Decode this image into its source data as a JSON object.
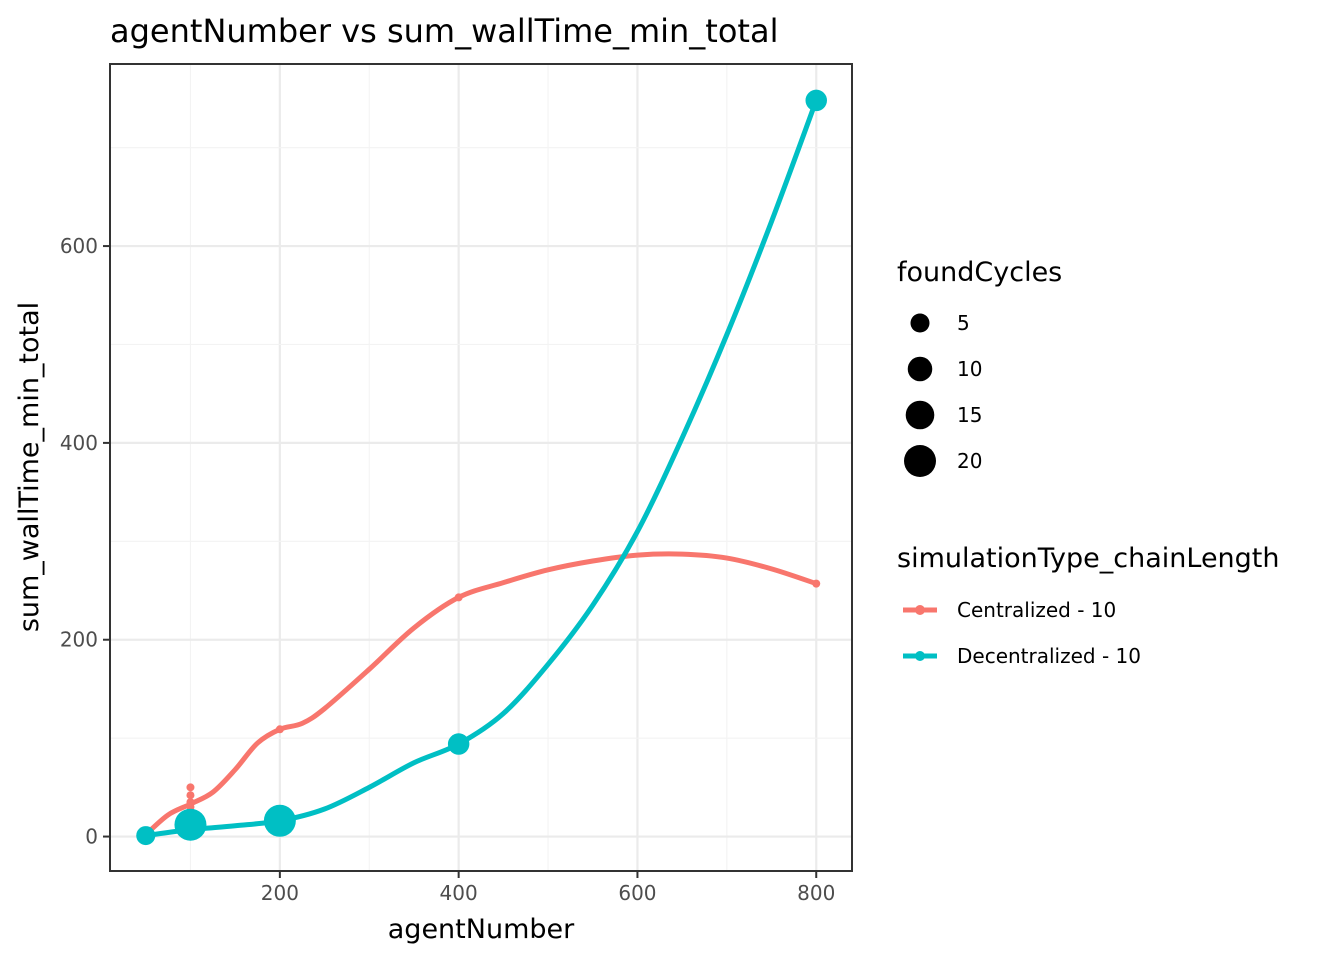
{
  "chart_data": {
    "type": "scatter",
    "title": "agentNumber  vs  sum_wallTime_min_total",
    "xlabel": "agentNumber",
    "ylabel": "sum_wallTime_min_total",
    "xlim": [
      10,
      840
    ],
    "ylim": [
      -35,
      785
    ],
    "x_ticks": [
      200,
      400,
      600,
      800
    ],
    "y_ticks": [
      0,
      200,
      400,
      600
    ],
    "x_tick_labels": [
      "200",
      "400",
      "600",
      "800"
    ],
    "y_tick_labels": [
      "0",
      "200",
      "400",
      "600"
    ],
    "grid": true,
    "legend_placement": "right",
    "size_legend": {
      "title": "foundCycles",
      "entries": [
        {
          "label": "5",
          "value": 5
        },
        {
          "label": "10",
          "value": 10
        },
        {
          "label": "15",
          "value": 15
        },
        {
          "label": "20",
          "value": 20
        }
      ]
    },
    "color_legend": {
      "title": "simulationType_chainLength"
    },
    "series": [
      {
        "name": "Centralized - 10",
        "color": "#F8766D",
        "points": [
          {
            "x": 50,
            "y": 2,
            "size": 1
          },
          {
            "x": 100,
            "y": 20,
            "size": 1
          },
          {
            "x": 100,
            "y": 25,
            "size": 1
          },
          {
            "x": 100,
            "y": 30,
            "size": 1
          },
          {
            "x": 100,
            "y": 35,
            "size": 1
          },
          {
            "x": 100,
            "y": 42,
            "size": 1
          },
          {
            "x": 100,
            "y": 50,
            "size": 1
          },
          {
            "x": 200,
            "y": 109,
            "size": 1
          },
          {
            "x": 400,
            "y": 243,
            "size": 1
          },
          {
            "x": 800,
            "y": 257,
            "size": 1
          }
        ],
        "smooth": [
          {
            "x": 50,
            "y": 2
          },
          {
            "x": 75,
            "y": 22
          },
          {
            "x": 100,
            "y": 33
          },
          {
            "x": 125,
            "y": 45
          },
          {
            "x": 150,
            "y": 68
          },
          {
            "x": 175,
            "y": 95
          },
          {
            "x": 200,
            "y": 109
          },
          {
            "x": 225,
            "y": 115
          },
          {
            "x": 250,
            "y": 130
          },
          {
            "x": 300,
            "y": 170
          },
          {
            "x": 350,
            "y": 212
          },
          {
            "x": 400,
            "y": 243
          },
          {
            "x": 450,
            "y": 258
          },
          {
            "x": 500,
            "y": 271
          },
          {
            "x": 550,
            "y": 280
          },
          {
            "x": 600,
            "y": 286
          },
          {
            "x": 650,
            "y": 287
          },
          {
            "x": 700,
            "y": 283
          },
          {
            "x": 750,
            "y": 272
          },
          {
            "x": 800,
            "y": 257
          }
        ]
      },
      {
        "name": "Decentralized - 10",
        "color": "#00BFC4",
        "points": [
          {
            "x": 50,
            "y": 1,
            "size": 5
          },
          {
            "x": 100,
            "y": 12,
            "size": 20
          },
          {
            "x": 200,
            "y": 16,
            "size": 20
          },
          {
            "x": 400,
            "y": 94,
            "size": 7
          },
          {
            "x": 800,
            "y": 748,
            "size": 7
          }
        ],
        "smooth": [
          {
            "x": 50,
            "y": 1
          },
          {
            "x": 100,
            "y": 7
          },
          {
            "x": 150,
            "y": 11
          },
          {
            "x": 200,
            "y": 16
          },
          {
            "x": 250,
            "y": 28
          },
          {
            "x": 300,
            "y": 50
          },
          {
            "x": 350,
            "y": 75
          },
          {
            "x": 400,
            "y": 94
          },
          {
            "x": 450,
            "y": 125
          },
          {
            "x": 500,
            "y": 175
          },
          {
            "x": 550,
            "y": 235
          },
          {
            "x": 600,
            "y": 310
          },
          {
            "x": 650,
            "y": 405
          },
          {
            "x": 700,
            "y": 510
          },
          {
            "x": 750,
            "y": 625
          },
          {
            "x": 800,
            "y": 748
          }
        ]
      }
    ]
  }
}
